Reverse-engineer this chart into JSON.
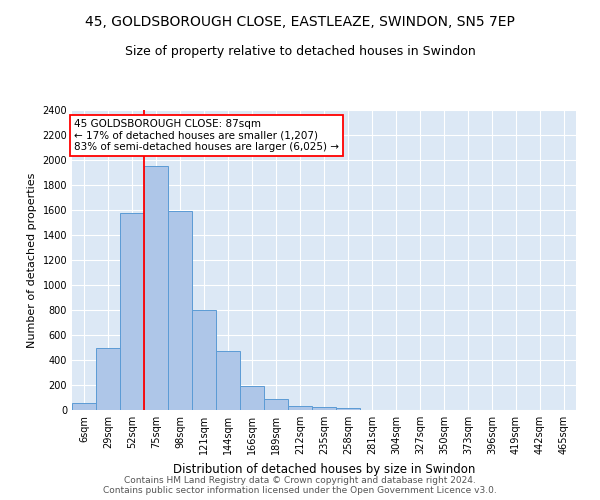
{
  "title1": "45, GOLDSBOROUGH CLOSE, EASTLEAZE, SWINDON, SN5 7EP",
  "title2": "Size of property relative to detached houses in Swindon",
  "xlabel": "Distribution of detached houses by size in Swindon",
  "ylabel": "Number of detached properties",
  "footer1": "Contains HM Land Registry data © Crown copyright and database right 2024.",
  "footer2": "Contains public sector information licensed under the Open Government Licence v3.0.",
  "annotation_line1": "45 GOLDSBOROUGH CLOSE: 87sqm",
  "annotation_line2": "← 17% of detached houses are smaller (1,207)",
  "annotation_line3": "83% of semi-detached houses are larger (6,025) →",
  "bar_values": [
    60,
    500,
    1580,
    1950,
    1590,
    800,
    475,
    195,
    90,
    35,
    25,
    20
  ],
  "bar_labels": [
    "6sqm",
    "29sqm",
    "52sqm",
    "75sqm",
    "98sqm",
    "121sqm",
    "144sqm",
    "166sqm",
    "189sqm",
    "212sqm",
    "235sqm",
    "258sqm"
  ],
  "extra_labels": [
    "281sqm",
    "304sqm",
    "327sqm",
    "350sqm",
    "373sqm",
    "396sqm",
    "419sqm",
    "442sqm",
    "465sqm"
  ],
  "bar_color": "#aec6e8",
  "bar_edge_color": "#5b9bd5",
  "red_line_x": 3.0,
  "ylim": [
    0,
    2400
  ],
  "yticks": [
    0,
    200,
    400,
    600,
    800,
    1000,
    1200,
    1400,
    1600,
    1800,
    2000,
    2200,
    2400
  ],
  "background_color": "#dce8f5",
  "box_color": "#cc0000",
  "title1_fontsize": 10,
  "title2_fontsize": 9,
  "annotation_fontsize": 7.5,
  "xlabel_fontsize": 8.5,
  "ylabel_fontsize": 8,
  "footer_fontsize": 6.5,
  "tick_fontsize": 7
}
